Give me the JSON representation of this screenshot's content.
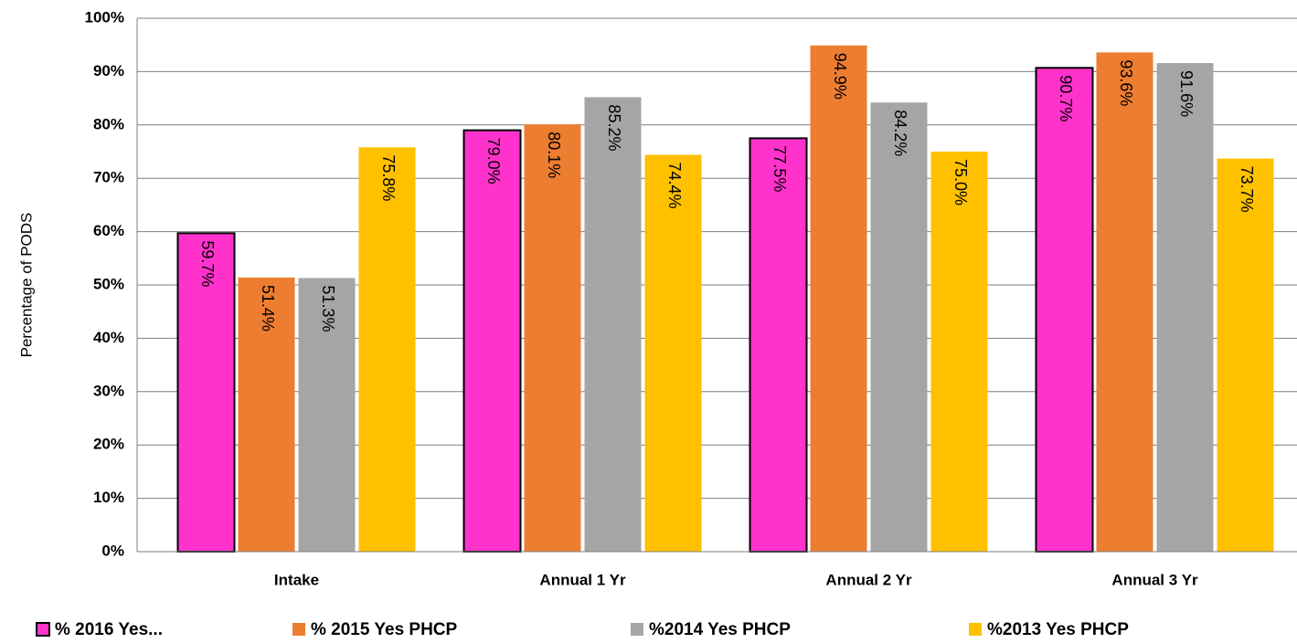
{
  "chart_data": {
    "type": "bar",
    "y_label": "Percentage of PODS",
    "categories": [
      "Intake",
      "Annual 1 Yr",
      "Annual 2 Yr",
      "Annual 3 Yr"
    ],
    "series": [
      {
        "name": "% 2016 Yes...",
        "color": "#ff33cc",
        "values": [
          59.7,
          79.0,
          77.5,
          90.7
        ],
        "value_labels": [
          "59.7%",
          "79.0%",
          "77.5%",
          "90.7%"
        ]
      },
      {
        "name": "% 2015 Yes PHCP",
        "color": "#ed7d31",
        "values": [
          51.4,
          80.1,
          94.9,
          93.6
        ],
        "value_labels": [
          "51.4%",
          "80.1%",
          "94.9%",
          "93.6%"
        ]
      },
      {
        "name": "%2014 Yes PHCP",
        "color": "#a5a5a5",
        "values": [
          51.3,
          85.2,
          84.2,
          91.6
        ],
        "value_labels": [
          "51.3%",
          "85.2%",
          "84.2%",
          "91.6%"
        ]
      },
      {
        "name": "%2013 Yes PHCP",
        "color": "#ffc000",
        "values": [
          75.8,
          74.4,
          75.0,
          73.7
        ],
        "value_labels": [
          "75.8%",
          "74.4%",
          "75.0%",
          "73.7%"
        ]
      }
    ],
    "ylim": [
      0,
      100
    ],
    "yticks": [
      {
        "value": 0,
        "label": "0%"
      },
      {
        "value": 10,
        "label": "10%"
      },
      {
        "value": 20,
        "label": "20%"
      },
      {
        "value": 30,
        "label": "30%"
      },
      {
        "value": 40,
        "label": "40%"
      },
      {
        "value": 50,
        "label": "50%"
      },
      {
        "value": 60,
        "label": "60%"
      },
      {
        "value": 70,
        "label": "70%"
      },
      {
        "value": 80,
        "label": "80%"
      },
      {
        "value": 90,
        "label": "90%"
      },
      {
        "value": 100,
        "label": "100%"
      }
    ],
    "grid": true
  }
}
